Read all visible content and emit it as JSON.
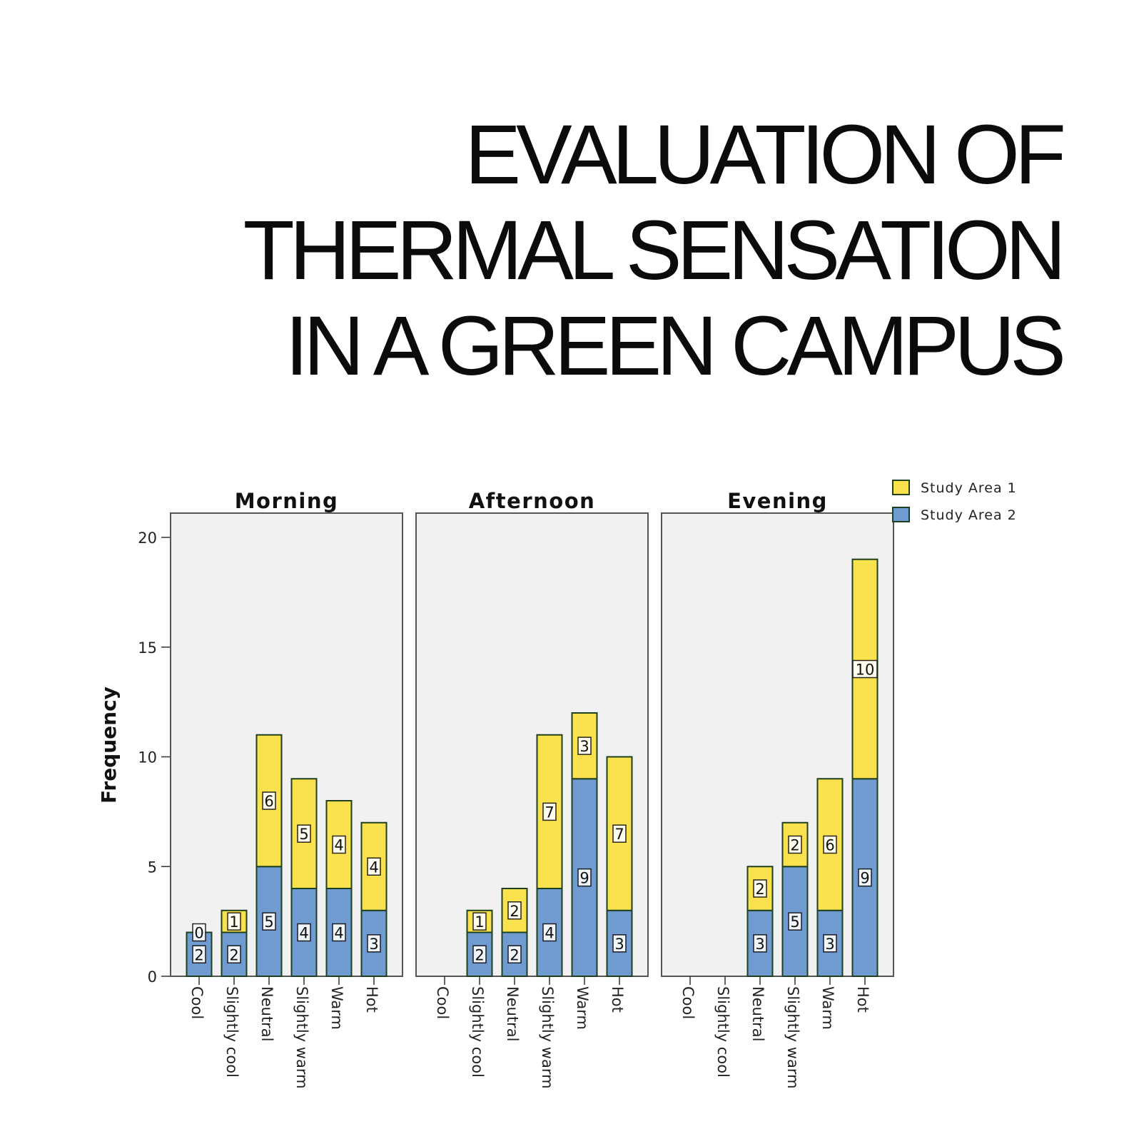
{
  "title_lines": [
    "EVALUATION OF",
    "THERMAL SENSATION",
    "IN A GREEN CAMPUS"
  ],
  "colors": {
    "study_area_1": "#f9e24e",
    "study_area_2": "#6f9bd1",
    "panel_bg": "#f1f1f1",
    "bar_outline": "#1e3f20"
  },
  "chart_data": {
    "type": "bar",
    "stacked": true,
    "ylabel": "Frequency",
    "ylim": [
      0,
      21
    ],
    "yticks": [
      0,
      5,
      10,
      15,
      20
    ],
    "categories": [
      "Cool",
      "Slightly cool",
      "Neutral",
      "Slightly warm",
      "Warm",
      "Hot"
    ],
    "legend": {
      "position": "top-right",
      "entries": [
        "Study Area 1",
        "Study Area 2"
      ]
    },
    "panels": [
      {
        "title": "Morning",
        "series": [
          {
            "name": "Study Area 2",
            "values": [
              2,
              2,
              5,
              4,
              4,
              3
            ]
          },
          {
            "name": "Study Area 1",
            "values": [
              0,
              1,
              6,
              5,
              4,
              4
            ]
          }
        ]
      },
      {
        "title": "Afternoon",
        "series": [
          {
            "name": "Study Area 2",
            "values": [
              0,
              2,
              2,
              4,
              9,
              3
            ]
          },
          {
            "name": "Study Area 1",
            "values": [
              0,
              1,
              2,
              7,
              3,
              7
            ]
          }
        ]
      },
      {
        "title": "Evening",
        "series": [
          {
            "name": "Study Area 2",
            "values": [
              0,
              0,
              3,
              5,
              3,
              9
            ]
          },
          {
            "name": "Study Area 1",
            "values": [
              0,
              0,
              2,
              2,
              6,
              10
            ]
          }
        ]
      }
    ]
  }
}
